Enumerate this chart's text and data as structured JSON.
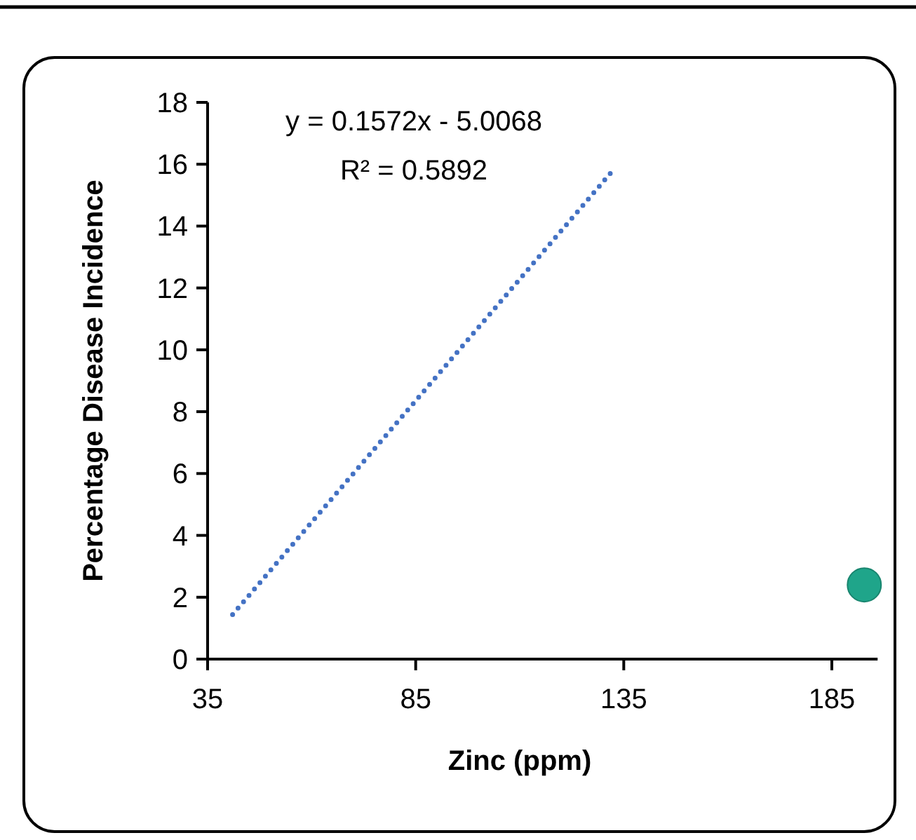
{
  "chart_data": {
    "type": "scatter",
    "xlabel": "Zinc (ppm)",
    "ylabel": "Percentage Disease Incidence",
    "annotations": [
      "y = 0.1572x - 5.0068",
      "R² = 0.5892"
    ],
    "xlim": [
      35,
      196
    ],
    "xticks": [
      35,
      85,
      135,
      185
    ],
    "ylim": [
      0,
      18
    ],
    "yticks": [
      0,
      2,
      4,
      6,
      8,
      10,
      12,
      14,
      16,
      18
    ],
    "grid": false,
    "series": [
      {
        "color": "#1fa58a",
        "x": [
          192.8
        ],
        "values": [
          2.4
        ],
        "marker": "circle"
      },
      {
        "type": "line",
        "color": "#4472c4",
        "x": [
          41,
          132
        ],
        "values": [
          1.44,
          15.74
        ],
        "line_style": "dotted",
        "marker": "none"
      }
    ]
  }
}
